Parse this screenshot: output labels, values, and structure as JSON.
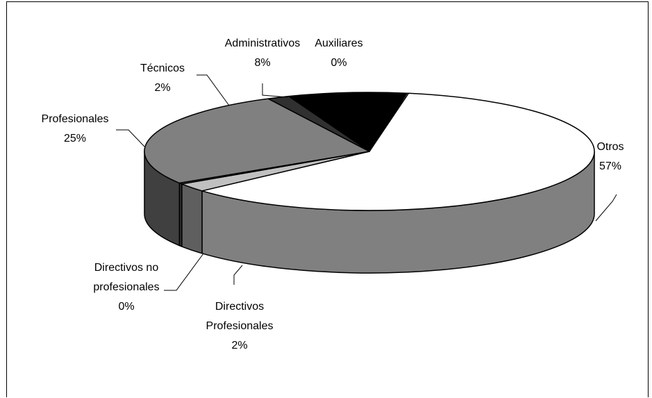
{
  "chart_data": {
    "type": "pie",
    "style": "3d-pie",
    "title": "",
    "start_angle_deg": -80,
    "direction": "clockwise",
    "slices": [
      {
        "key": "otros",
        "label": "Otros",
        "value": 57,
        "display": "57%",
        "color": "#ffffff",
        "side_color": "#808080"
      },
      {
        "key": "directivos_prof",
        "label": "Directivos Profesionales",
        "label_lines": [
          "Directivos",
          "Profesionales"
        ],
        "value": 2.2,
        "display": "2%",
        "color": "#c0c0c0",
        "side_color": "#5f5f5f"
      },
      {
        "key": "directivos_no_prof",
        "label": "Directivos no profesionales",
        "label_lines": [
          "Directivos no",
          "profesionales"
        ],
        "value": 0.3,
        "display": "0%",
        "color": "#606060",
        "side_color": "#303030"
      },
      {
        "key": "profesionales",
        "label": "Profesionales",
        "value": 25,
        "display": "25%",
        "color": "#808080",
        "side_color": "#404040"
      },
      {
        "key": "tecnicos",
        "label": "Técnicos",
        "value": 1.5,
        "display": "2%",
        "color": "#303030",
        "side_color": "#181818"
      },
      {
        "key": "administrativos",
        "label": "Administrativos",
        "value": 8,
        "display": "8%",
        "color": "#000000",
        "side_color": "#000000"
      },
      {
        "key": "auxiliares",
        "label": "Auxiliares",
        "value": 0.1,
        "display": "0%",
        "color": "#ffffff",
        "side_color": "#808080"
      }
    ],
    "legend": "none"
  }
}
